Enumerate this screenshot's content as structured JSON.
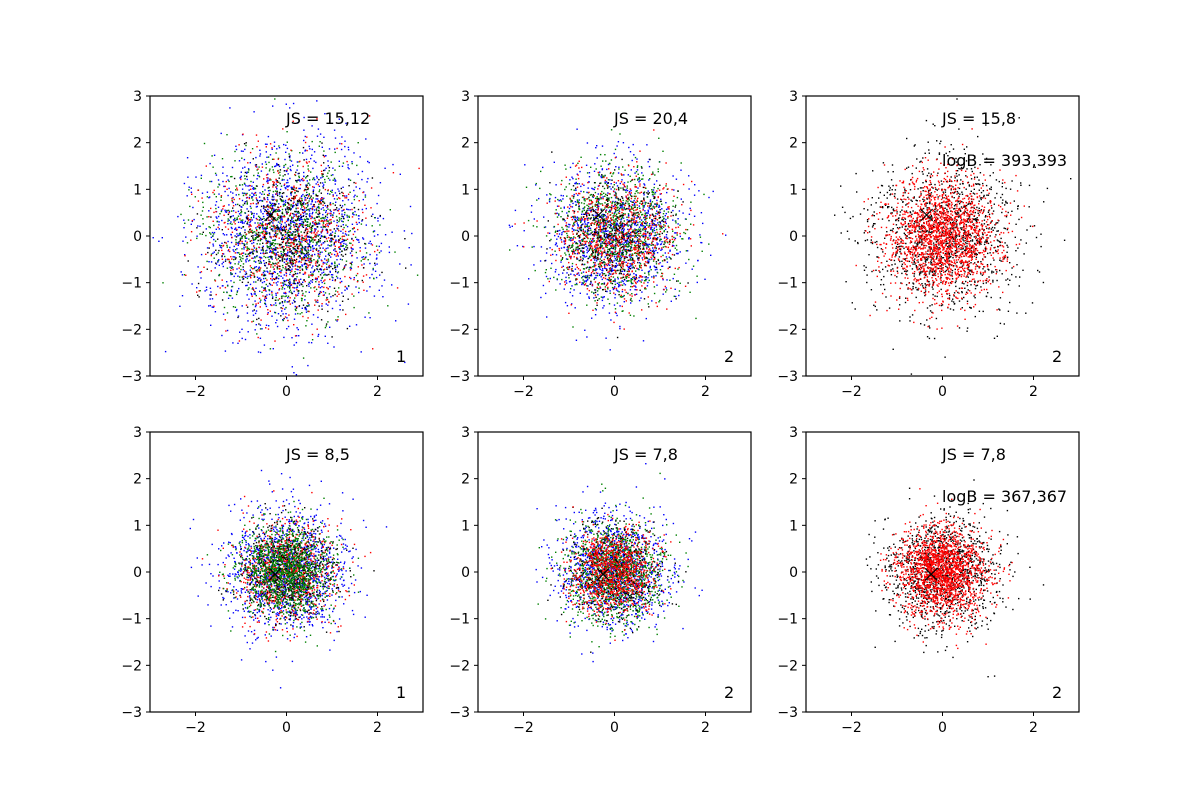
{
  "chart_data": [
    {
      "type": "scatter",
      "xlim": [
        -3,
        3
      ],
      "ylim": [
        -3,
        3
      ],
      "xticks": [
        -2,
        0,
        2
      ],
      "yticks": [
        -3,
        -2,
        -1,
        0,
        1,
        2,
        3
      ],
      "annotation": "JS = 15,12",
      "annotation2": "",
      "corner_label": "1",
      "marker": {
        "x": -0.35,
        "y": 0.45
      },
      "series": [
        {
          "color": "#0000ff",
          "count": 1500,
          "sd": 1.0,
          "mean": [
            0.0,
            0.0
          ]
        },
        {
          "color": "#008000",
          "count": 900,
          "sd": 0.85,
          "mean": [
            0.0,
            0.0
          ]
        },
        {
          "color": "#ff0000",
          "count": 700,
          "sd": 0.85,
          "mean": [
            0.0,
            0.0
          ]
        },
        {
          "color": "#000000",
          "count": 500,
          "sd": 0.75,
          "mean": [
            0.0,
            0.0
          ]
        }
      ]
    },
    {
      "type": "scatter",
      "xlim": [
        -3,
        3
      ],
      "ylim": [
        -3,
        3
      ],
      "xticks": [
        -2,
        0,
        2
      ],
      "yticks": [
        -3,
        -2,
        -1,
        0,
        1,
        2,
        3
      ],
      "annotation": "JS = 20,4",
      "annotation2": "",
      "corner_label": "2",
      "marker": {
        "x": -0.35,
        "y": 0.45
      },
      "series": [
        {
          "color": "#0000ff",
          "count": 1100,
          "sd": 0.75,
          "mean": [
            0.0,
            0.0
          ]
        },
        {
          "color": "#008000",
          "count": 1000,
          "sd": 0.7,
          "mean": [
            0.0,
            0.0
          ]
        },
        {
          "color": "#ff0000",
          "count": 800,
          "sd": 0.65,
          "mean": [
            0.0,
            0.0
          ]
        },
        {
          "color": "#000000",
          "count": 400,
          "sd": 0.6,
          "mean": [
            0.0,
            0.0
          ]
        }
      ]
    },
    {
      "type": "scatter",
      "xlim": [
        -3,
        3
      ],
      "ylim": [
        -3,
        3
      ],
      "xticks": [
        -2,
        0,
        2
      ],
      "yticks": [
        -3,
        -2,
        -1,
        0,
        1,
        2,
        3
      ],
      "annotation": "JS = 15,8",
      "annotation2": "logB = 393,393",
      "corner_label": "2",
      "marker": {
        "x": -0.35,
        "y": 0.45
      },
      "series": [
        {
          "color": "#000000",
          "count": 1300,
          "sd": 0.85,
          "mean": [
            0.0,
            0.0
          ]
        },
        {
          "color": "#ff0000",
          "count": 1800,
          "sd": 0.62,
          "mean": [
            0.0,
            0.0
          ]
        }
      ]
    },
    {
      "type": "scatter",
      "xlim": [
        -3,
        3
      ],
      "ylim": [
        -3,
        3
      ],
      "xticks": [
        -2,
        0,
        2
      ],
      "yticks": [
        -3,
        -2,
        -1,
        0,
        1,
        2,
        3
      ],
      "annotation": "JS = 8,5",
      "annotation2": "",
      "corner_label": "1",
      "marker": {
        "x": -0.25,
        "y": -0.05
      },
      "series": [
        {
          "color": "#0000ff",
          "count": 1300,
          "sd": 0.65,
          "mean": [
            0.0,
            0.0
          ]
        },
        {
          "color": "#ff0000",
          "count": 800,
          "sd": 0.55,
          "mean": [
            0.0,
            0.0
          ]
        },
        {
          "color": "#000000",
          "count": 600,
          "sd": 0.5,
          "mean": [
            0.0,
            0.0
          ]
        },
        {
          "color": "#008000",
          "count": 1200,
          "sd": 0.5,
          "mean": [
            0.0,
            0.0
          ]
        }
      ]
    },
    {
      "type": "scatter",
      "xlim": [
        -3,
        3
      ],
      "ylim": [
        -3,
        3
      ],
      "xticks": [
        -2,
        0,
        2
      ],
      "yticks": [
        -3,
        -2,
        -1,
        0,
        1,
        2,
        3
      ],
      "annotation": "JS = 7,8",
      "annotation2": "",
      "corner_label": "2",
      "marker": {
        "x": -0.25,
        "y": -0.05
      },
      "series": [
        {
          "color": "#0000ff",
          "count": 1100,
          "sd": 0.6,
          "mean": [
            0.0,
            0.0
          ]
        },
        {
          "color": "#008000",
          "count": 1200,
          "sd": 0.55,
          "mean": [
            0.0,
            0.0
          ]
        },
        {
          "color": "#000000",
          "count": 500,
          "sd": 0.5,
          "mean": [
            0.0,
            0.0
          ]
        },
        {
          "color": "#ff0000",
          "count": 900,
          "sd": 0.45,
          "mean": [
            0.0,
            0.0
          ]
        }
      ]
    },
    {
      "type": "scatter",
      "xlim": [
        -3,
        3
      ],
      "ylim": [
        -3,
        3
      ],
      "xticks": [
        -2,
        0,
        2
      ],
      "yticks": [
        -3,
        -2,
        -1,
        0,
        1,
        2,
        3
      ],
      "annotation": "JS = 7,8",
      "annotation2": "logB = 367,367",
      "corner_label": "2",
      "marker": {
        "x": -0.25,
        "y": -0.05
      },
      "series": [
        {
          "color": "#000000",
          "count": 1200,
          "sd": 0.62,
          "mean": [
            0.0,
            0.0
          ]
        },
        {
          "color": "#ff0000",
          "count": 1800,
          "sd": 0.48,
          "mean": [
            0.0,
            0.0
          ]
        }
      ]
    }
  ]
}
